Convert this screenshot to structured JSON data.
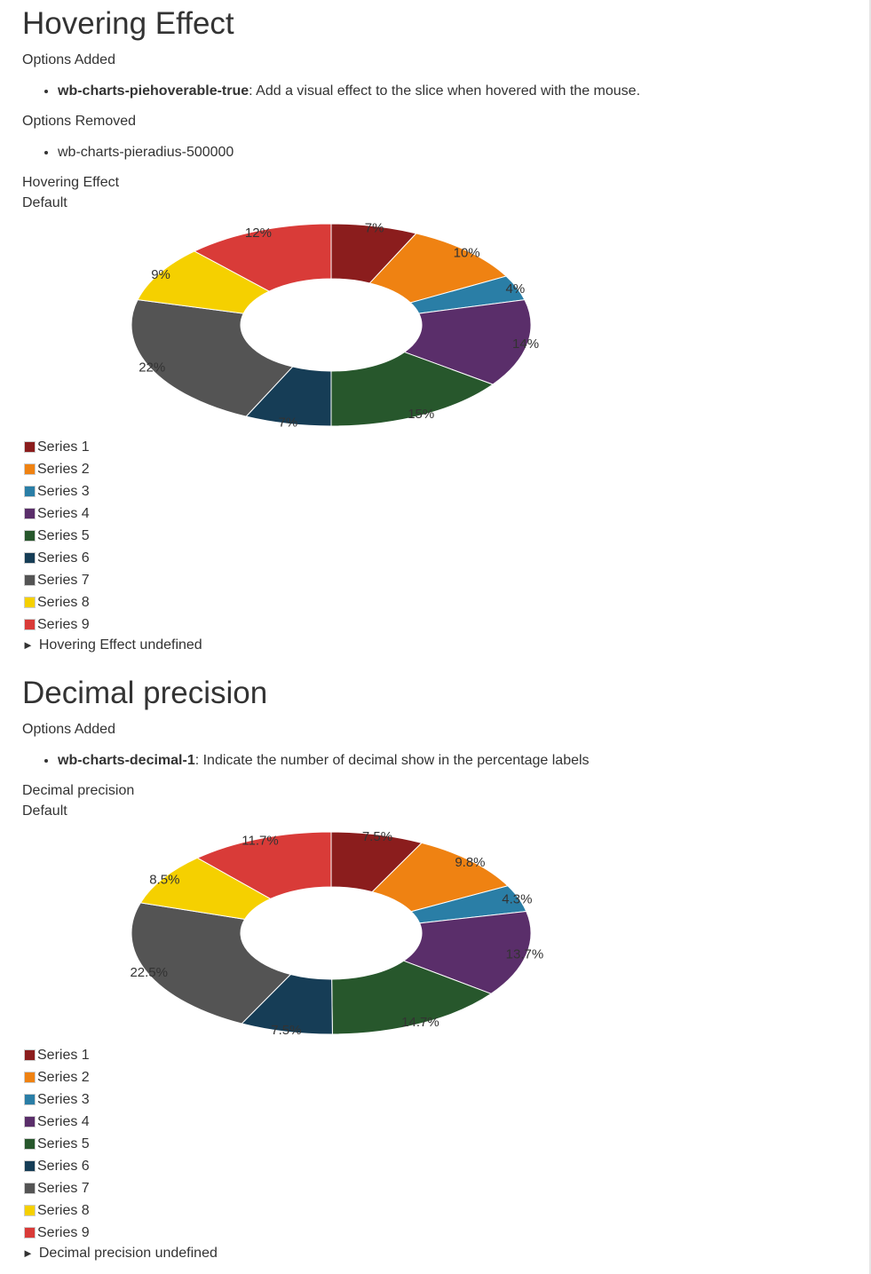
{
  "sections": [
    {
      "heading": "Hovering Effect",
      "options_added_label": "Options Added",
      "options_added": [
        {
          "code": "wb-charts-piehoverable-true",
          "desc": ": Add a visual effect to the slice when hovered with the mouse."
        }
      ],
      "options_removed_label": "Options Removed",
      "options_removed": [
        "wb-charts-pieradius-500000"
      ],
      "caption": "Hovering Effect",
      "caption_sub": "Default",
      "details_label": "Hovering Effect undefined"
    },
    {
      "heading": "Decimal precision",
      "options_added_label": "Options Added",
      "options_added": [
        {
          "code": "wb-charts-decimal-1",
          "desc": ": Indicate the number of decimal show in the percentage labels"
        }
      ],
      "caption": "Decimal precision",
      "caption_sub": "Default",
      "details_label": "Decimal precision undefined"
    }
  ],
  "chart_data": [
    {
      "type": "pie",
      "variant": "donut",
      "series": [
        {
          "name": "Series 1",
          "value": 7,
          "label": "7%"
        },
        {
          "name": "Series 2",
          "value": 10,
          "label": "10%"
        },
        {
          "name": "Series 3",
          "value": 4,
          "label": "4%"
        },
        {
          "name": "Series 4",
          "value": 14,
          "label": "14%"
        },
        {
          "name": "Series 5",
          "value": 15,
          "label": "15%"
        },
        {
          "name": "Series 6",
          "value": 7,
          "label": "7%"
        },
        {
          "name": "Series 7",
          "value": 22,
          "label": "22%"
        },
        {
          "name": "Series 8",
          "value": 9,
          "label": "9%"
        },
        {
          "name": "Series 9",
          "value": 12,
          "label": "12%"
        }
      ],
      "legend_position": "bottom-left"
    },
    {
      "type": "pie",
      "variant": "donut",
      "series": [
        {
          "name": "Series 1",
          "value": 7.5,
          "label": "7.5%"
        },
        {
          "name": "Series 2",
          "value": 9.8,
          "label": "9.8%"
        },
        {
          "name": "Series 3",
          "value": 4.3,
          "label": "4.3%"
        },
        {
          "name": "Series 4",
          "value": 13.7,
          "label": "13.7%"
        },
        {
          "name": "Series 5",
          "value": 14.7,
          "label": "14.7%"
        },
        {
          "name": "Series 6",
          "value": 7.5,
          "label": "7.5%"
        },
        {
          "name": "Series 7",
          "value": 22.5,
          "label": "22.5%"
        },
        {
          "name": "Series 8",
          "value": 8.5,
          "label": "8.5%"
        },
        {
          "name": "Series 9",
          "value": 11.7,
          "label": "11.7%"
        }
      ],
      "legend_position": "bottom-left"
    }
  ],
  "colors": [
    "#8b1d1d",
    "#ef8212",
    "#2a7ea6",
    "#5a2e6a",
    "#27572c",
    "#163d56",
    "#545454",
    "#f5d000",
    "#d93b38"
  ]
}
